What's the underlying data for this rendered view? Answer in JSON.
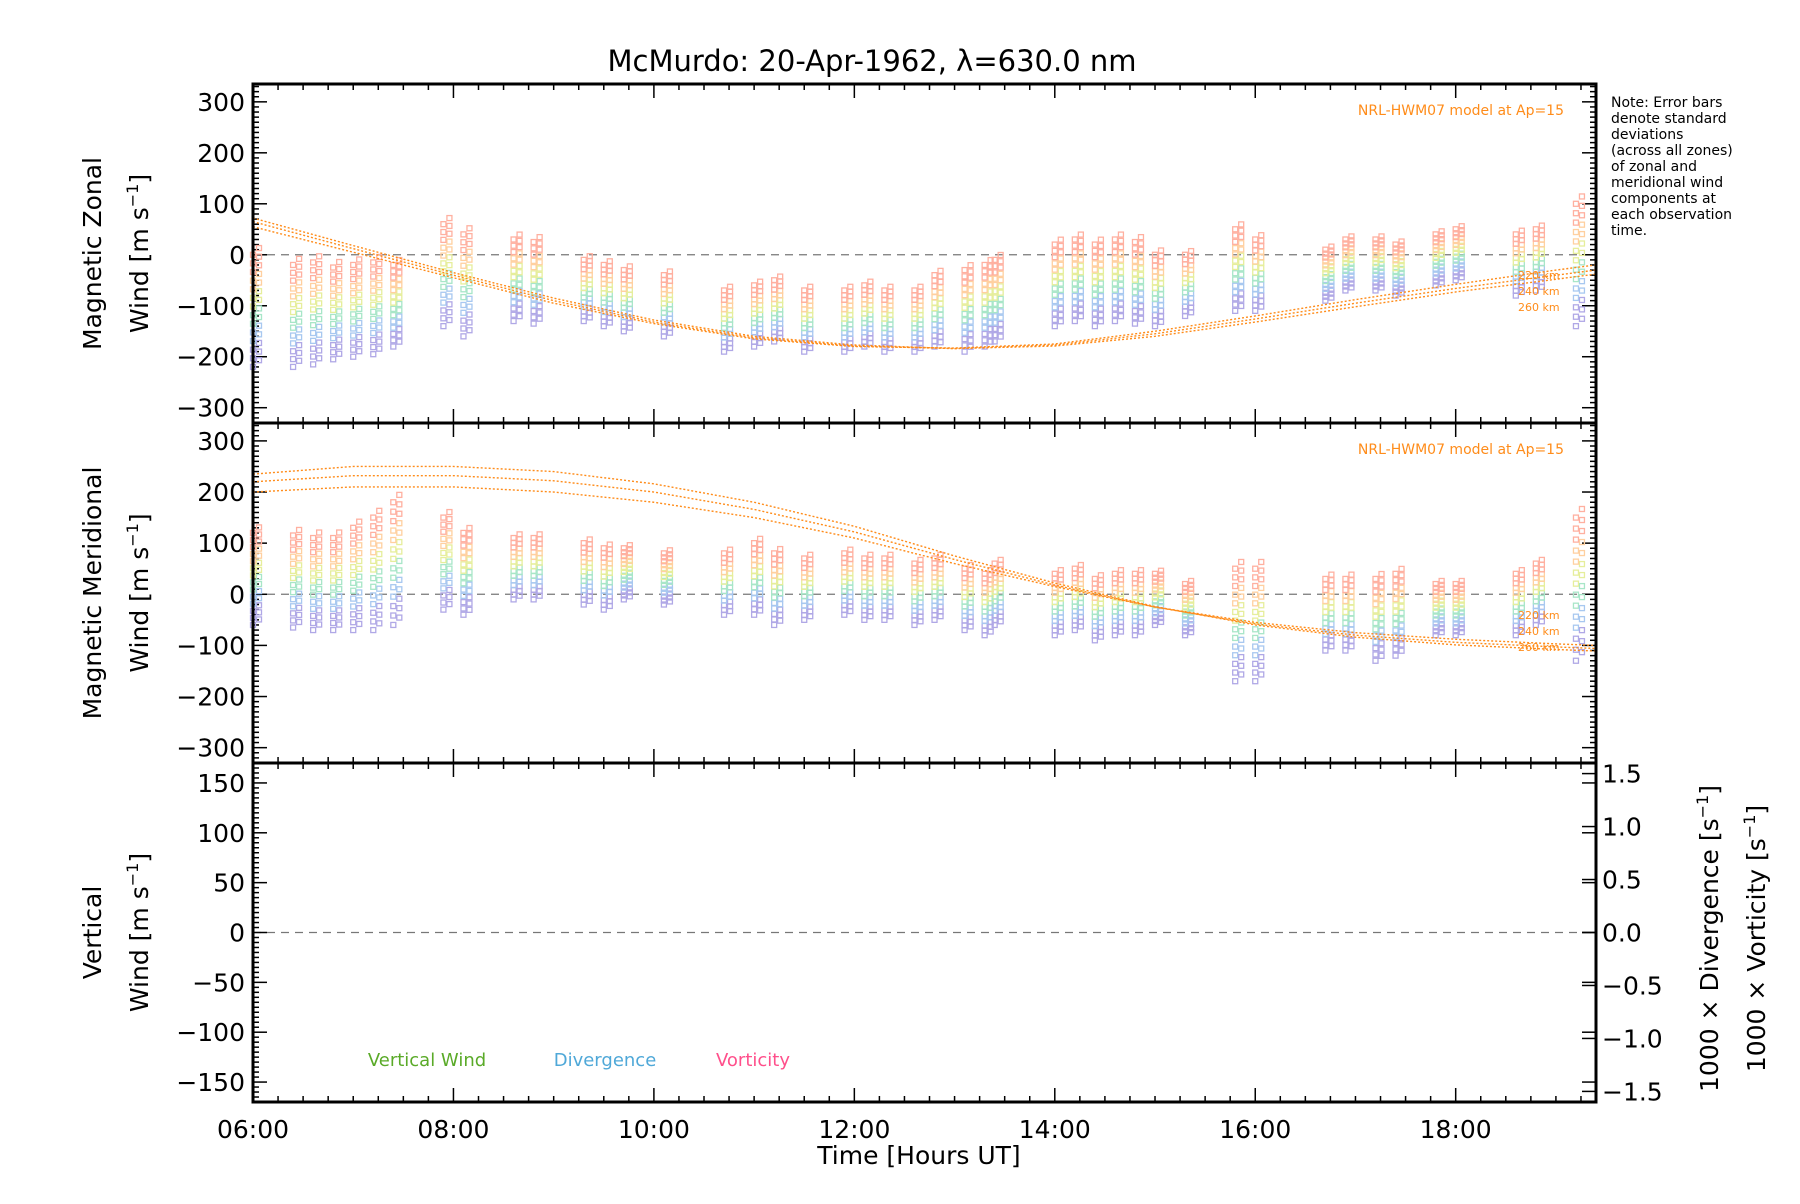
{
  "chart_data": {
    "type": "scatter",
    "title": "McMurdo: 20-Apr-1962, λ=630.0 nm",
    "xlabel": "Time [Hours UT]",
    "x_range_hours": [
      6.0,
      19.4
    ],
    "x_ticks": [
      "06:00",
      "08:00",
      "10:00",
      "12:00",
      "14:00",
      "16:00",
      "18:00"
    ],
    "note": [
      "Note: Error bars",
      "denote standard",
      "deviations",
      "(across all zones)",
      "of zonal and",
      "meridional wind",
      "components at",
      "each observation",
      "time."
    ],
    "model_label": "NRL-HWM07 model at Ap=15",
    "model_altitudes": [
      "220 km",
      "240 km",
      "260 km"
    ],
    "panels": [
      {
        "id": "zonal",
        "ylabel": [
          "Magnetic Zonal",
          "Wind [m s⁻¹]"
        ],
        "ylim": [
          -330,
          335
        ],
        "yticks": [
          "300",
          "200",
          "100",
          "0",
          "−100",
          "−200",
          "−300"
        ],
        "model_series": [
          {
            "name": "220 km",
            "x": [
              6.0,
              7.0,
              8.0,
              9.0,
              10.0,
              11.0,
              12.0,
              13.0,
              14.0,
              15.0,
              16.0,
              17.0,
              18.0,
              19.0,
              19.4
            ],
            "y": [
              55,
              5,
              -45,
              -95,
              -135,
              -165,
              -180,
              -183,
              -175,
              -150,
              -120,
              -88,
              -58,
              -30,
              -20
            ]
          },
          {
            "name": "240 km",
            "x": [
              6.0,
              7.0,
              8.0,
              9.0,
              10.0,
              11.0,
              12.0,
              13.0,
              14.0,
              15.0,
              16.0,
              17.0,
              18.0,
              19.0,
              19.4
            ],
            "y": [
              65,
              12,
              -40,
              -90,
              -132,
              -163,
              -179,
              -184,
              -177,
              -155,
              -126,
              -95,
              -66,
              -40,
              -30
            ]
          },
          {
            "name": "260 km",
            "x": [
              6.0,
              7.0,
              8.0,
              9.0,
              10.0,
              11.0,
              12.0,
              13.0,
              14.0,
              15.0,
              16.0,
              17.0,
              18.0,
              19.0,
              19.4
            ],
            "y": [
              72,
              18,
              -35,
              -85,
              -128,
              -160,
              -177,
              -184,
              -179,
              -160,
              -132,
              -102,
              -73,
              -48,
              -38
            ]
          }
        ],
        "observations": {
          "times": [
            6.0,
            6.4,
            6.6,
            6.8,
            7.0,
            7.2,
            7.4,
            7.9,
            8.1,
            8.6,
            8.8,
            9.3,
            9.5,
            9.7,
            10.1,
            10.7,
            11.0,
            11.2,
            11.5,
            11.9,
            12.1,
            12.3,
            12.6,
            12.8,
            13.1,
            13.3,
            13.4,
            14.0,
            14.2,
            14.4,
            14.6,
            14.8,
            15.0,
            15.3,
            15.8,
            16.0,
            16.7,
            16.9,
            17.2,
            17.4,
            17.8,
            18.0,
            18.6,
            18.8,
            19.2
          ],
          "centers": [
            -110,
            -120,
            -115,
            -115,
            -110,
            -105,
            -100,
            -40,
            -60,
            -50,
            -55,
            -70,
            -80,
            -90,
            -100,
            -130,
            -120,
            -110,
            -130,
            -130,
            -120,
            -130,
            -130,
            -110,
            -110,
            -100,
            -90,
            -60,
            -50,
            -60,
            -50,
            -55,
            -70,
            -60,
            -30,
            -40,
            -40,
            -20,
            -20,
            -30,
            -10,
            0,
            -20,
            -10,
            -20
          ],
          "half_spread": [
            110,
            100,
            100,
            90,
            90,
            90,
            80,
            100,
            100,
            80,
            80,
            60,
            60,
            60,
            60,
            60,
            60,
            60,
            60,
            60,
            60,
            60,
            60,
            70,
            80,
            80,
            80,
            80,
            80,
            80,
            80,
            80,
            70,
            60,
            80,
            70,
            50,
            50,
            50,
            50,
            50,
            50,
            60,
            60,
            120
          ]
        }
      },
      {
        "id": "meridional",
        "ylabel": [
          "Magnetic Meridional",
          "Wind [m s⁻¹]"
        ],
        "ylim": [
          -330,
          335
        ],
        "yticks": [
          "300",
          "200",
          "100",
          "0",
          "−100",
          "−200",
          "−300"
        ],
        "model_series": [
          {
            "name": "220 km",
            "x": [
              6.0,
              7.0,
              8.0,
              9.0,
              10.0,
              11.0,
              12.0,
              13.0,
              14.0,
              15.0,
              16.0,
              17.0,
              18.0,
              19.0,
              19.4
            ],
            "y": [
              200,
              210,
              210,
              200,
              180,
              150,
              110,
              60,
              15,
              -25,
              -55,
              -75,
              -88,
              -97,
              -100
            ]
          },
          {
            "name": "240 km",
            "x": [
              6.0,
              7.0,
              8.0,
              9.0,
              10.0,
              11.0,
              12.0,
              13.0,
              14.0,
              15.0,
              16.0,
              17.0,
              18.0,
              19.0,
              19.4
            ],
            "y": [
              220,
              232,
              232,
              222,
              200,
              166,
              122,
              68,
              18,
              -25,
              -58,
              -80,
              -94,
              -103,
              -106
            ]
          },
          {
            "name": "260 km",
            "x": [
              6.0,
              7.0,
              8.0,
              9.0,
              10.0,
              11.0,
              12.0,
              13.0,
              14.0,
              15.0,
              16.0,
              17.0,
              18.0,
              19.0,
              19.4
            ],
            "y": [
              235,
              250,
              250,
              240,
              216,
              180,
              133,
              75,
              22,
              -24,
              -60,
              -84,
              -99,
              -108,
              -111
            ]
          }
        ],
        "observations": {
          "times": [
            6.0,
            6.4,
            6.6,
            6.8,
            7.0,
            7.2,
            7.4,
            7.9,
            8.1,
            8.6,
            8.8,
            9.3,
            9.5,
            9.7,
            10.1,
            10.7,
            11.0,
            11.2,
            11.5,
            11.9,
            12.1,
            12.3,
            12.6,
            12.8,
            13.1,
            13.3,
            13.4,
            14.0,
            14.2,
            14.4,
            14.6,
            14.8,
            15.0,
            15.3,
            15.8,
            16.0,
            16.7,
            16.9,
            17.2,
            17.4,
            17.8,
            18.0,
            18.6,
            18.8,
            19.2
          ],
          "centers": [
            30,
            25,
            20,
            20,
            30,
            40,
            60,
            60,
            40,
            50,
            50,
            40,
            30,
            40,
            30,
            20,
            30,
            10,
            10,
            20,
            10,
            10,
            0,
            10,
            -10,
            -20,
            0,
            -20,
            -10,
            -30,
            -20,
            -20,
            -10,
            -30,
            -60,
            -60,
            -40,
            -40,
            -50,
            -40,
            -30,
            -30,
            -20,
            0,
            10
          ],
          "half_spread": [
            90,
            90,
            90,
            90,
            100,
            110,
            120,
            90,
            80,
            60,
            60,
            60,
            60,
            50,
            50,
            60,
            70,
            70,
            60,
            60,
            60,
            60,
            60,
            60,
            60,
            60,
            60,
            60,
            60,
            60,
            60,
            60,
            50,
            50,
            110,
            110,
            70,
            70,
            80,
            80,
            50,
            50,
            60,
            60,
            140
          ]
        }
      },
      {
        "id": "vertical",
        "ylabel": [
          "Vertical",
          "Wind [m s⁻¹]"
        ],
        "ylim": [
          -170,
          170
        ],
        "yticks": [
          "150",
          "100",
          "50",
          "0",
          "−50",
          "−100",
          "−150"
        ],
        "right_ylim": [
          -1.6,
          1.6
        ],
        "right_yticks": [
          "1.5",
          "1.0",
          "0.5",
          "0.0",
          "−0.5",
          "−1.0",
          "−1.5"
        ],
        "right_ylabels": [
          "1000 × Divergence [s⁻¹]",
          "1000 × Vorticity [s⁻¹]"
        ],
        "legend": [
          "Vertical Wind",
          "Divergence",
          "Vorticity"
        ]
      }
    ],
    "colors": {
      "model": "#ff8c1a",
      "vertical_wind": "#5aaa28",
      "divergence": "#4fa8d8",
      "vorticity": "#ff4f8b",
      "obs_palette": [
        "#b0a8e6",
        "#a8c8f0",
        "#a8e6c8",
        "#e6ee9c",
        "#ffd0a0",
        "#ffb0a0"
      ]
    }
  }
}
